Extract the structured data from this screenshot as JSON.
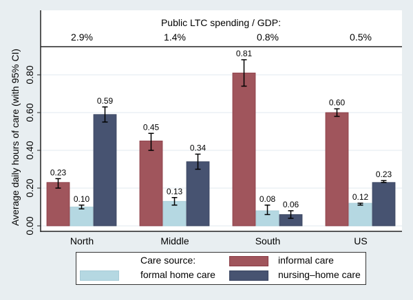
{
  "chart_data": {
    "type": "bar",
    "title": "",
    "header_title": "Public LTC spending / GDP:",
    "header_values": [
      "2.9%",
      "1.4%",
      "0.8%",
      "0.5%"
    ],
    "xlabel": "",
    "ylabel": "Average daily hours of care (with 95% CI)",
    "ylim": [
      0,
      0.93
    ],
    "yticks": [
      0.0,
      0.2,
      0.4,
      0.6,
      0.8
    ],
    "ytick_labels": [
      "0.00",
      "0.20",
      "0.40",
      "0.60",
      "0.80"
    ],
    "grid": true,
    "categories": [
      "North",
      "Middle",
      "South",
      "US"
    ],
    "series": [
      {
        "name": "informal care",
        "color": "#a0555c",
        "values": [
          0.23,
          0.45,
          0.81,
          0.6
        ],
        "labels": [
          "0.23",
          "0.45",
          "0.81",
          "0.60"
        ],
        "ci_low": [
          0.2,
          0.4,
          0.74,
          0.58
        ],
        "ci_high": [
          0.25,
          0.49,
          0.88,
          0.62
        ]
      },
      {
        "name": "formal home care",
        "color": "#b5d8e2",
        "values": [
          0.1,
          0.13,
          0.08,
          0.12
        ],
        "labels": [
          "0.10",
          "0.13",
          "0.08",
          "0.12"
        ],
        "ci_low": [
          0.09,
          0.11,
          0.06,
          0.11
        ],
        "ci_high": [
          0.11,
          0.15,
          0.11,
          0.12
        ]
      },
      {
        "name": "nursing-home care",
        "color": "#475371",
        "values": [
          0.59,
          0.34,
          0.06,
          0.23
        ],
        "labels": [
          "0.59",
          "0.34",
          "0.06",
          "0.23"
        ],
        "ci_low": [
          0.55,
          0.3,
          0.04,
          0.23
        ],
        "ci_high": [
          0.63,
          0.38,
          0.08,
          0.24
        ]
      }
    ],
    "legend": {
      "position": "bottom",
      "title": "Care source:",
      "entries": [
        "informal care",
        "formal home care",
        "nursing–home care"
      ]
    }
  }
}
